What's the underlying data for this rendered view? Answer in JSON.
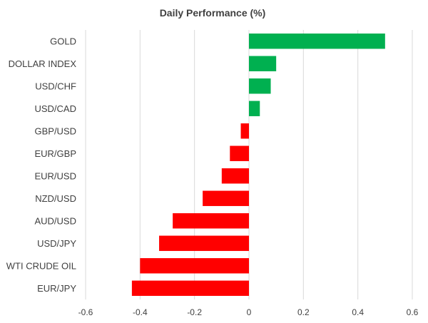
{
  "chart_data": {
    "type": "bar",
    "orientation": "horizontal",
    "title": "Daily Performance (%)",
    "xlabel": "",
    "ylabel": "",
    "categories": [
      "GOLD",
      "DOLLAR INDEX",
      "USD/CHF",
      "USD/CAD",
      "GBP/USD",
      "EUR/GBP",
      "EUR/USD",
      "NZD/USD",
      "AUD/USD",
      "USD/JPY",
      "WTI CRUDE OIL",
      "EUR/JPY"
    ],
    "values": [
      0.5,
      0.1,
      0.08,
      0.04,
      -0.03,
      -0.07,
      -0.1,
      -0.17,
      -0.28,
      -0.33,
      -0.4,
      -0.43
    ],
    "xlim": [
      -0.6,
      0.6
    ],
    "x_ticks": [
      -0.6,
      -0.4,
      -0.2,
      0,
      0.2,
      0.4,
      0.6
    ],
    "x_tick_labels": [
      "-0.6",
      "-0.4",
      "-0.2",
      "0",
      "0.2",
      "0.4",
      "0.6"
    ],
    "grid": "vertical",
    "legend": "none",
    "colors": {
      "positive": "#00b050",
      "negative": "#ff0000",
      "grid": "#d9d9d9",
      "text": "#404040"
    }
  }
}
